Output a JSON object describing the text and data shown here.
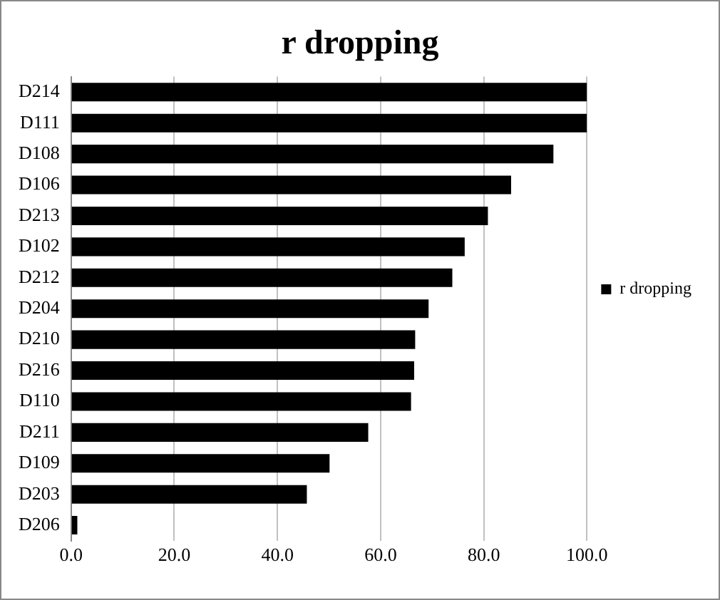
{
  "chart_data": {
    "type": "bar",
    "orientation": "horizontal",
    "title": "r dropping",
    "categories": [
      "D214",
      "D111",
      "D108",
      "D106",
      "D213",
      "D102",
      "D212",
      "D204",
      "D210",
      "D216",
      "D110",
      "D211",
      "D109",
      "D203",
      "D206"
    ],
    "series": [
      {
        "name": "r dropping",
        "color": "#000000",
        "values": [
          100,
          100,
          93.5,
          85.3,
          80.8,
          76.3,
          73.9,
          69.3,
          66.7,
          66.5,
          65.9,
          57.6,
          50.1,
          45.7,
          1.2
        ]
      }
    ],
    "xlim": [
      0,
      100
    ],
    "xticks": [
      {
        "value": 0,
        "label": "0.0"
      },
      {
        "value": 20,
        "label": "20.0"
      },
      {
        "value": 40,
        "label": "40.0"
      },
      {
        "value": 60,
        "label": "60.0"
      },
      {
        "value": 80,
        "label": "80.0"
      },
      {
        "value": 100,
        "label": "100.0"
      }
    ],
    "grid": "x",
    "legend": "right"
  }
}
